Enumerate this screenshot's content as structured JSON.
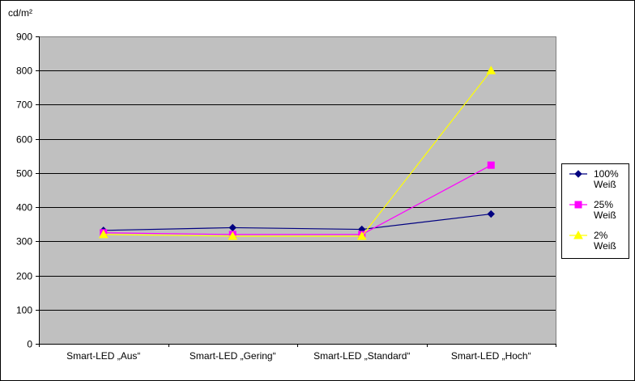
{
  "chart_data": {
    "type": "line",
    "ylabel": "cd/m²",
    "ylim": [
      0,
      900
    ],
    "ytick_step": 100,
    "categories": [
      "Smart-LED „Aus“",
      "Smart-LED „Gering“",
      "Smart-LED „Standard“",
      "Smart-LED „Hoch“"
    ],
    "series": [
      {
        "name_line1": "100%",
        "name_line2": "Weiß",
        "color": "#000080",
        "marker": "diamond",
        "values": [
          332,
          340,
          335,
          380
        ]
      },
      {
        "name_line1": "25%",
        "name_line2": "Weiß",
        "color": "#FF00FF",
        "marker": "square",
        "values": [
          325,
          320,
          320,
          523
        ]
      },
      {
        "name_line1": "2%",
        "name_line2": "Weiß",
        "color": "#FFFF00",
        "marker": "triangle",
        "values": [
          320,
          315,
          315,
          800
        ]
      }
    ],
    "grid": true,
    "plot_background": "#C0C0C0",
    "legend_position": "right"
  }
}
